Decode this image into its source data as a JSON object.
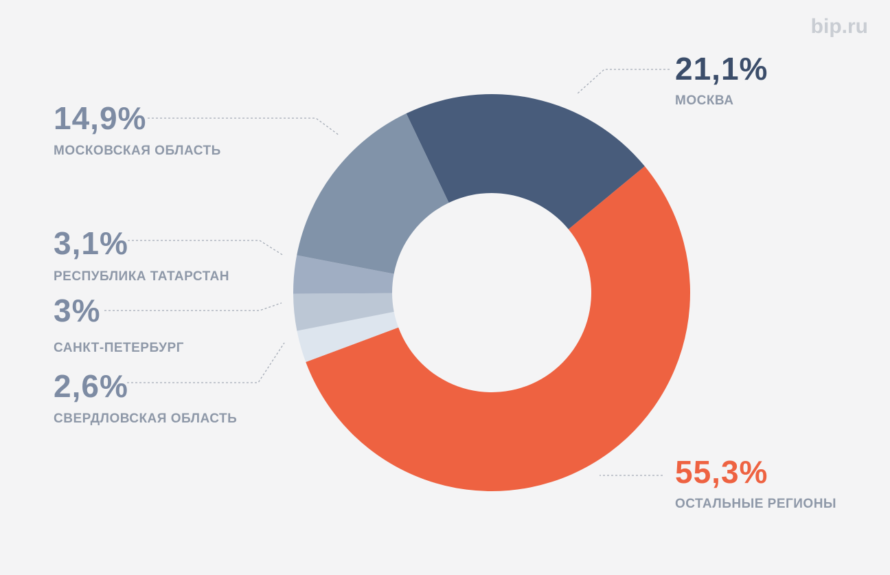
{
  "brand": "bip.ru",
  "chart_data": {
    "type": "pie",
    "style": "donut",
    "title": "",
    "slices": [
      {
        "label": "МОСКВА",
        "pct_label": "21,1%",
        "value": 21.1,
        "color": "#485c7b",
        "text_color": "#3b4d6a",
        "side": "right"
      },
      {
        "label": "ОСТАЛЬНЫЕ РЕГИОНЫ",
        "pct_label": "55,3%",
        "value": 55.3,
        "color": "#ee6241",
        "text_color": "#ee6241",
        "side": "right"
      },
      {
        "label": "СВЕРДЛОВСКАЯ ОБЛАСТЬ",
        "pct_label": "2,6%",
        "value": 2.6,
        "color": "#dde5ee",
        "text_color": "#7d8ba3",
        "side": "left"
      },
      {
        "label": "САНКТ-ПЕТЕРБУРГ",
        "pct_label": "3%",
        "value": 3.0,
        "color": "#bcc7d5",
        "text_color": "#7d8ba3",
        "side": "left"
      },
      {
        "label": "РЕСПУБЛИКА ТАТАРСТАН",
        "pct_label": "3,1%",
        "value": 3.1,
        "color": "#a0aec3",
        "text_color": "#7d8ba3",
        "side": "left"
      },
      {
        "label": "МОСКОВСКАЯ ОБЛАСТЬ",
        "pct_label": "14,9%",
        "value": 14.9,
        "color": "#8193a9",
        "text_color": "#7d8ba3",
        "side": "left"
      }
    ]
  },
  "colors": {
    "background": "#f4f4f5",
    "label": "#8e98a8",
    "leader": "#a4abb6",
    "brand": "#c9cdd3"
  }
}
